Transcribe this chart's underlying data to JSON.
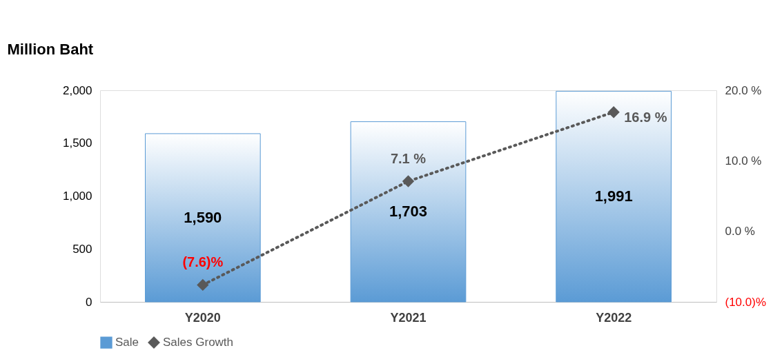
{
  "chart_data": {
    "type": "bar",
    "ylabel": "Million Baht",
    "categories": [
      "Y2020",
      "Y2021",
      "Y2022"
    ],
    "series": [
      {
        "name": "Sale",
        "color": "#5b9bd5",
        "values": [
          1590,
          1703,
          1991
        ],
        "value_labels": [
          "1,590",
          "1,703",
          "1,991"
        ]
      },
      {
        "name": "Sales Growth",
        "type": "line",
        "axis": "y2",
        "color": "#595959",
        "values": [
          -7.6,
          7.1,
          16.9
        ],
        "value_labels": [
          "(7.6)%",
          "7.1 %",
          "16.9 %"
        ],
        "marker": "diamond",
        "line_style": "dotted"
      }
    ],
    "ylim": [
      0,
      2000
    ],
    "yticks": [
      {
        "value": 0,
        "label": "0"
      },
      {
        "value": 500,
        "label": "500"
      },
      {
        "value": 1000,
        "label": "1,000"
      },
      {
        "value": 1500,
        "label": "1,500"
      },
      {
        "value": 2000,
        "label": "2,000"
      }
    ],
    "y2lim": [
      -10,
      20
    ],
    "y2ticks": [
      {
        "value": -10,
        "label": "(10.0)%"
      },
      {
        "value": 0,
        "label": "0.0 %"
      },
      {
        "value": 10,
        "label": "10.0 %"
      },
      {
        "value": 20,
        "label": "20.0 %"
      }
    ],
    "legend": "bottom"
  }
}
